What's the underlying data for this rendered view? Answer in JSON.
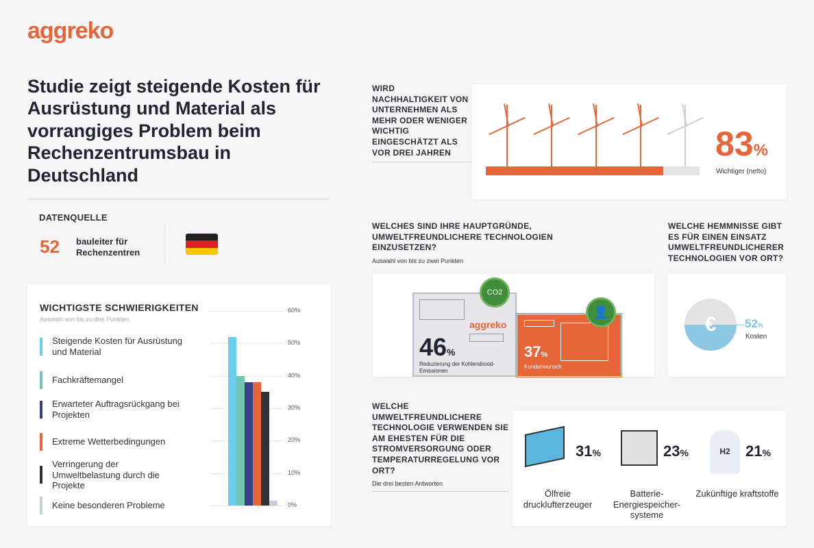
{
  "brand": {
    "logo": "aggreko",
    "orange": "#e8653a"
  },
  "title": "Studie zeigt steigende Kosten für Ausrüstung und Material als vorrangiges Problem beim Rechenzentrumsbau in Deutschland",
  "source": {
    "heading": "DATENQUELLE",
    "count": "52",
    "label": "bauleiter für Rechenzentren",
    "flag": "germany-flag-icon"
  },
  "sustainability": {
    "question": "WIRD NACHHALTIGKEIT VON UNTERNEHMEN ALS MEHR ODER WENIGER WICHTIG EINGESCHÄTZT ALS VOR DREI JAHREN",
    "value": "83",
    "unit": "%",
    "label": "Wichtiger (netto)",
    "progress": 83
  },
  "reasons": {
    "question": "WELCHES SIND IHRE HAUPTGRÜNDE, UMWELTFREUNDLICHERE TECHNOLOGIEN EINZUSETZEN?",
    "note": "Auswahl von bis zu zwei Punkten",
    "brand": "aggreko",
    "co2": "CO2",
    "items": [
      {
        "value": "46",
        "unit": "%",
        "label": "Reduzierung der Kohlendioxid-Emissionen"
      },
      {
        "value": "37",
        "unit": "%",
        "label": "Kundenwunsch"
      }
    ]
  },
  "barriers": {
    "question": "WELCHE HEMMNISSE GIBT ES FÜR EINEN EINSATZ UMWELTFREUNDLICHERER TECHNOLOGIEN VOR ORT?",
    "symbol": "€",
    "value": "52",
    "unit": "%",
    "label": "Kosten"
  },
  "technology": {
    "question": "WELCHE UMWELTFREUNDLICHERE TECHNOLOGIE VERWENDEN SIE AM EHESTEN FÜR DIE STROMVERSORGUNG ODER TEMPERATURREGELUNG VOR ORT?",
    "note": "Die drei besten Antworten",
    "items": [
      {
        "value": "31",
        "unit": "%",
        "label": "Ölfreie drucklufterzeuger"
      },
      {
        "value": "23",
        "unit": "%",
        "label": "Batterie-Energiespeicher-systeme"
      },
      {
        "value": "21",
        "unit": "%",
        "label": "Zukünftige kraftstoffe",
        "h2": "H2"
      }
    ]
  },
  "chart_data": {
    "type": "bar",
    "title": "WICHTIGSTE SCHWIERIGKEITEN",
    "subtitle": "Auswahl von bis zu drei Punkten",
    "categories": [
      "Steigende Kosten für Ausrüstung und Material",
      "Fachkräftemangel",
      "Erwarteter Auftragsrückgang bei Projekten",
      "Extreme Wetterbedingungen",
      "Verringerung der Umweltbelastung durch die Projekte",
      "Keine besonderen Probleme"
    ],
    "values": [
      52,
      40,
      38,
      38,
      35,
      1.5
    ],
    "colors": [
      "#6dcff0",
      "#73c7b2",
      "#3b3f86",
      "#e8653a",
      "#2e333b",
      "#c8cde0"
    ],
    "ylim": [
      0,
      60
    ],
    "yticks": [
      "0%",
      "10%",
      "20%",
      "30%",
      "40%",
      "50%",
      "60%"
    ],
    "grid": true,
    "legend": "left"
  }
}
